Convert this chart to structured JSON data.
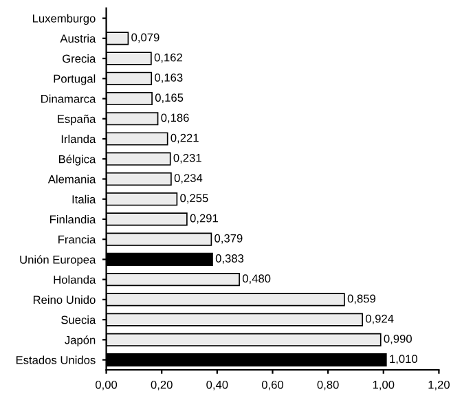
{
  "chart_data": {
    "type": "bar",
    "orientation": "horizontal",
    "categories": [
      "Luxemburgo",
      "Austria",
      "Grecia",
      "Portugal",
      "Dinamarca",
      "España",
      "Irlanda",
      "Bélgica",
      "Alemania",
      "Italia",
      "Finlandia",
      "Francia",
      "Unión Europea",
      "Holanda",
      "Reino Unido",
      "Suecia",
      "Japón",
      "Estados Unidos"
    ],
    "values": [
      null,
      0.079,
      0.162,
      0.163,
      0.165,
      0.186,
      0.221,
      0.231,
      0.234,
      0.255,
      0.291,
      0.379,
      0.383,
      0.48,
      0.859,
      0.924,
      0.99,
      1.01
    ],
    "value_labels": [
      null,
      "0,079",
      "0,162",
      "0,163",
      "0,165",
      "0,186",
      "0,221",
      "0,231",
      "0,234",
      "0,255",
      "0,291",
      "0,379",
      "0,383",
      "0,480",
      "0,859",
      "0,924",
      "0,990",
      "1,010"
    ],
    "colors": [
      "#ececec",
      "#ececec",
      "#ececec",
      "#ececec",
      "#ececec",
      "#ececec",
      "#ececec",
      "#ececec",
      "#ececec",
      "#ececec",
      "#ececec",
      "#ececec",
      "#000000",
      "#ececec",
      "#ececec",
      "#ececec",
      "#ececec",
      "#000000"
    ],
    "xlim": [
      0,
      1.2
    ],
    "xticks": [
      {
        "value": 0,
        "label": "0,00"
      },
      {
        "value": 0.2,
        "label": "0,20"
      },
      {
        "value": 0.4,
        "label": "0,40"
      },
      {
        "value": 0.6,
        "label": "0,60"
      },
      {
        "value": 0.8,
        "label": "0,80"
      },
      {
        "value": 1.0,
        "label": "1,00"
      },
      {
        "value": 1.2,
        "label": "1,20"
      }
    ],
    "grid": false,
    "legend": false
  }
}
